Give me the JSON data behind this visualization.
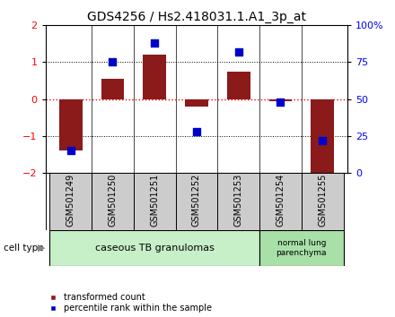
{
  "title": "GDS4256 / Hs2.418031.1.A1_3p_at",
  "samples": [
    "GSM501249",
    "GSM501250",
    "GSM501251",
    "GSM501252",
    "GSM501253",
    "GSM501254",
    "GSM501255"
  ],
  "transformed_count": [
    -1.4,
    0.55,
    1.2,
    -0.2,
    0.75,
    -0.05,
    -2.1
  ],
  "percentile_rank": [
    15,
    75,
    88,
    28,
    82,
    48,
    22
  ],
  "bar_color": "#8B1A1A",
  "dot_color": "#0000CC",
  "ylim_left": [
    -2,
    2
  ],
  "ylim_right": [
    0,
    100
  ],
  "yticks_left": [
    -2,
    -1,
    0,
    1,
    2
  ],
  "yticks_right": [
    0,
    25,
    50,
    75,
    100
  ],
  "yticklabels_right": [
    "0",
    "25",
    "50",
    "75",
    "100%"
  ],
  "group1_indices": [
    0,
    1,
    2,
    3,
    4
  ],
  "group2_indices": [
    5,
    6
  ],
  "group1_label": "caseous TB granulomas",
  "group2_label": "normal lung\nparenchyma",
  "group1_color": "#c8f0c8",
  "group2_color": "#a8e0a8",
  "cell_type_label": "cell type",
  "legend_bar_label": "transformed count",
  "legend_dot_label": "percentile rank within the sample",
  "background_color": "#ffffff",
  "sample_box_color": "#cccccc",
  "title_fontsize": 10,
  "tick_fontsize": 8,
  "sample_fontsize": 7
}
